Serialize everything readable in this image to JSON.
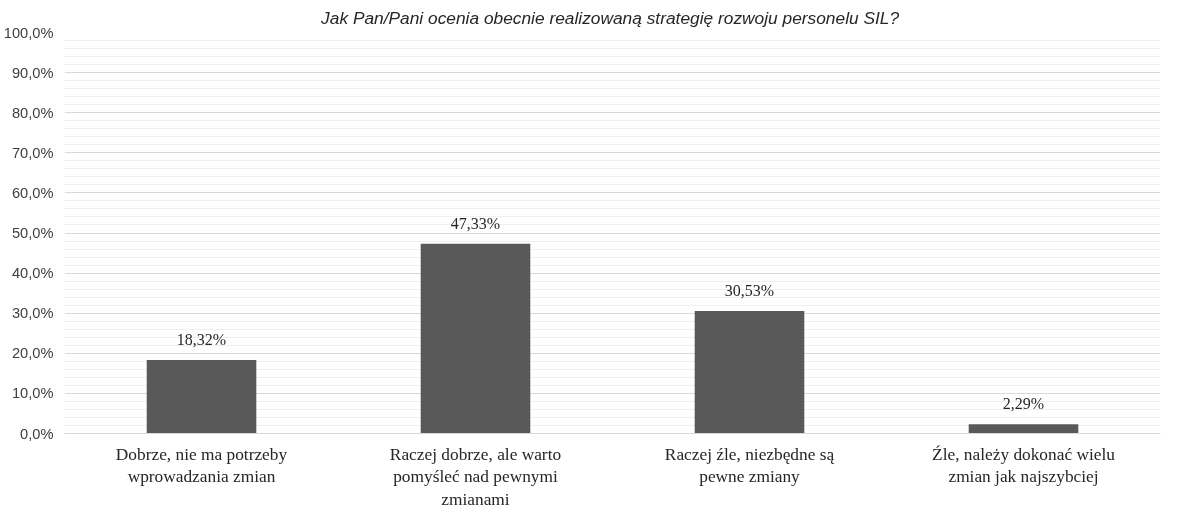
{
  "chart_data": {
    "type": "bar",
    "title": "Jak Pan/Pani ocenia obecnie realizowaną strategię rozwoju  personelu SIL?",
    "categories": [
      "Dobrze, nie ma potrzeby wprowadzania zmian",
      "Raczej dobrze, ale warto pomyśleć nad pewnymi zmianami",
      "Raczej źle, niezbędne są pewne zmiany",
      "Źle, należy dokonać wielu zmian jak najszybciej"
    ],
    "values": [
      18.32,
      47.33,
      30.53,
      2.29
    ],
    "value_labels": [
      "18,32%",
      "47,33%",
      "30,53%",
      "2,29%"
    ],
    "color": "#595959",
    "ylim": [
      0,
      100
    ],
    "yticks": [
      {
        "value": 0,
        "label": "0,0%"
      },
      {
        "value": 10,
        "label": "10,0%"
      },
      {
        "value": 20,
        "label": "20,0%"
      },
      {
        "value": 30,
        "label": "30,0%"
      },
      {
        "value": 40,
        "label": "40,0%"
      },
      {
        "value": 50,
        "label": "50,0%"
      },
      {
        "value": 60,
        "label": "60,0%"
      },
      {
        "value": 70,
        "label": "70,0%"
      },
      {
        "value": 80,
        "label": "80,0%"
      },
      {
        "value": 90,
        "label": "90,0%"
      },
      {
        "value": 100,
        "label": "100,0%"
      }
    ],
    "grid": true
  }
}
